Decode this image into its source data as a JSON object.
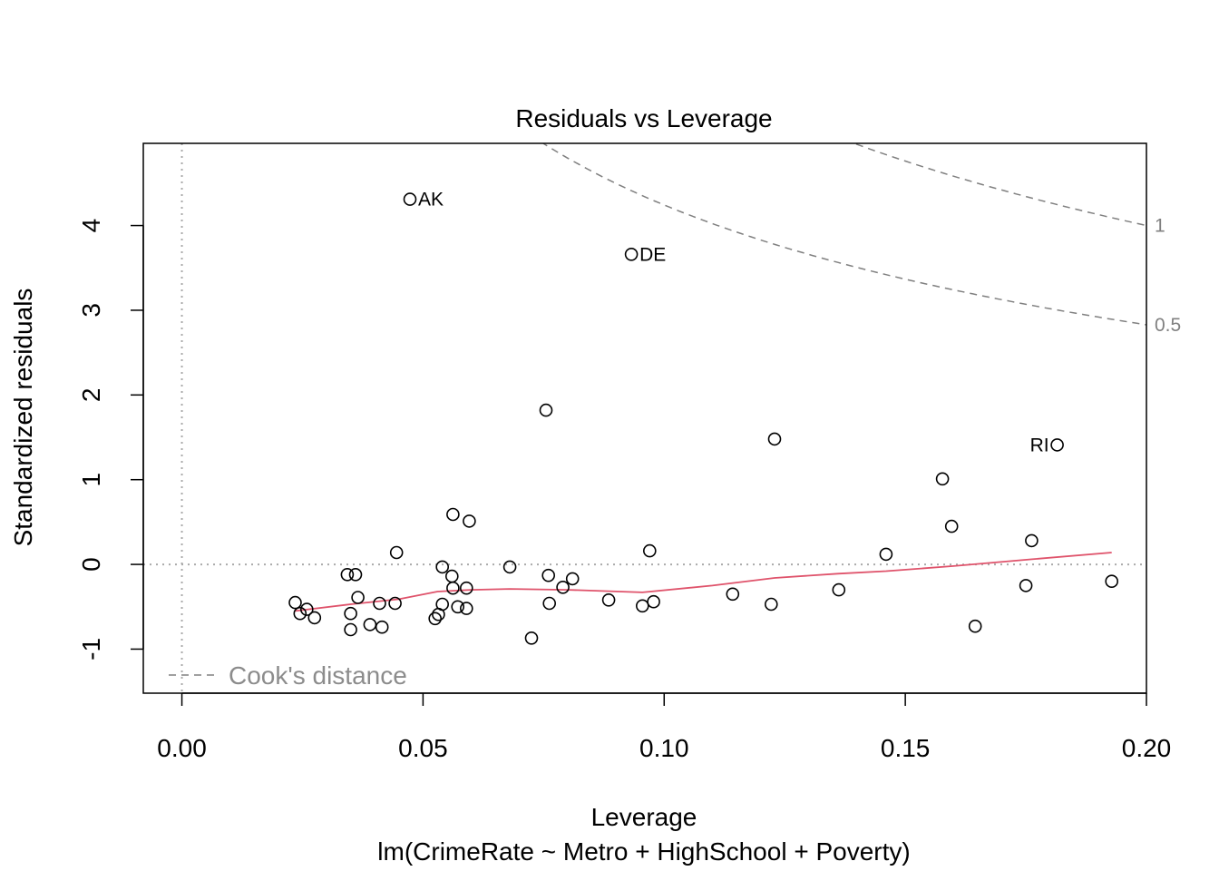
{
  "chart_data": {
    "type": "scatter",
    "title": "Residuals vs Leverage",
    "xlabel": "Leverage",
    "subtitle": "lm(CrimeRate ~ Metro + HighSchool + Poverty)",
    "ylabel": "Standardized residuals",
    "xlim": [
      -0.008,
      0.2
    ],
    "ylim": [
      -1.52,
      4.97
    ],
    "xticks": [
      {
        "value": 0.0,
        "label": "0.00"
      },
      {
        "value": 0.05,
        "label": "0.05"
      },
      {
        "value": 0.1,
        "label": "0.10"
      },
      {
        "value": 0.15,
        "label": "0.15"
      },
      {
        "value": 0.2,
        "label": "0.20"
      }
    ],
    "yticks": [
      {
        "value": -1,
        "label": "-1"
      },
      {
        "value": 0,
        "label": "0"
      },
      {
        "value": 1,
        "label": "1"
      },
      {
        "value": 2,
        "label": "2"
      },
      {
        "value": 3,
        "label": "3"
      },
      {
        "value": 4,
        "label": "4"
      }
    ],
    "points": [
      [
        0.0473,
        4.31
      ],
      [
        0.0932,
        3.66
      ],
      [
        0.1815,
        1.41
      ],
      [
        0.0755,
        1.82
      ],
      [
        0.1229,
        1.48
      ],
      [
        0.1577,
        1.01
      ],
      [
        0.1596,
        0.45
      ],
      [
        0.1762,
        0.28
      ],
      [
        0.146,
        0.12
      ],
      [
        0.097,
        0.16
      ],
      [
        0.0445,
        0.14
      ],
      [
        0.0562,
        0.59
      ],
      [
        0.0596,
        0.51
      ],
      [
        0.068,
        -0.03
      ],
      [
        0.054,
        -0.03
      ],
      [
        0.0343,
        -0.12
      ],
      [
        0.036,
        -0.12
      ],
      [
        0.056,
        -0.14
      ],
      [
        0.076,
        -0.13
      ],
      [
        0.081,
        -0.17
      ],
      [
        0.079,
        -0.27
      ],
      [
        0.0562,
        -0.28
      ],
      [
        0.059,
        -0.28
      ],
      [
        0.0365,
        -0.39
      ],
      [
        0.0235,
        -0.45
      ],
      [
        0.0259,
        -0.53
      ],
      [
        0.0245,
        -0.58
      ],
      [
        0.0275,
        -0.63
      ],
      [
        0.035,
        -0.58
      ],
      [
        0.041,
        -0.46
      ],
      [
        0.0442,
        -0.46
      ],
      [
        0.054,
        -0.47
      ],
      [
        0.0572,
        -0.5
      ],
      [
        0.059,
        -0.52
      ],
      [
        0.0532,
        -0.59
      ],
      [
        0.0525,
        -0.64
      ],
      [
        0.039,
        -0.71
      ],
      [
        0.0415,
        -0.74
      ],
      [
        0.035,
        -0.77
      ],
      [
        0.0725,
        -0.87
      ],
      [
        0.0762,
        -0.46
      ],
      [
        0.0885,
        -0.42
      ],
      [
        0.0955,
        -0.49
      ],
      [
        0.0978,
        -0.44
      ],
      [
        0.1142,
        -0.35
      ],
      [
        0.1222,
        -0.47
      ],
      [
        0.1362,
        -0.3
      ],
      [
        0.1645,
        -0.73
      ],
      [
        0.175,
        -0.25
      ],
      [
        0.1928,
        -0.2
      ]
    ],
    "point_labels": [
      {
        "x": 0.0473,
        "y": 4.31,
        "text": "AK",
        "side": "right"
      },
      {
        "x": 0.0932,
        "y": 3.66,
        "text": "DE",
        "side": "right"
      },
      {
        "x": 0.1815,
        "y": 1.41,
        "text": "RI",
        "side": "left"
      }
    ],
    "smooth": [
      [
        0.0235,
        -0.55
      ],
      [
        0.035,
        -0.47
      ],
      [
        0.045,
        -0.41
      ],
      [
        0.053,
        -0.32
      ],
      [
        0.06,
        -0.3
      ],
      [
        0.068,
        -0.29
      ],
      [
        0.08,
        -0.3
      ],
      [
        0.0955,
        -0.33
      ],
      [
        0.11,
        -0.25
      ],
      [
        0.1229,
        -0.16
      ],
      [
        0.136,
        -0.11
      ],
      [
        0.146,
        -0.08
      ],
      [
        0.16,
        -0.02
      ],
      [
        0.176,
        0.06
      ],
      [
        0.1928,
        0.14
      ]
    ],
    "cooks_contours": [
      {
        "level": 0.5,
        "label": "0.5"
      },
      {
        "level": 1,
        "label": "1"
      }
    ],
    "cooks_p": 4,
    "legend": {
      "label": "Cook's distance",
      "position": "bottom-left"
    },
    "colors": {
      "points": "#000000",
      "smooth": "#DF536B",
      "reference": "#A9A9A9",
      "cooks": "#808080",
      "legend_text": "#8C8C8C"
    }
  }
}
